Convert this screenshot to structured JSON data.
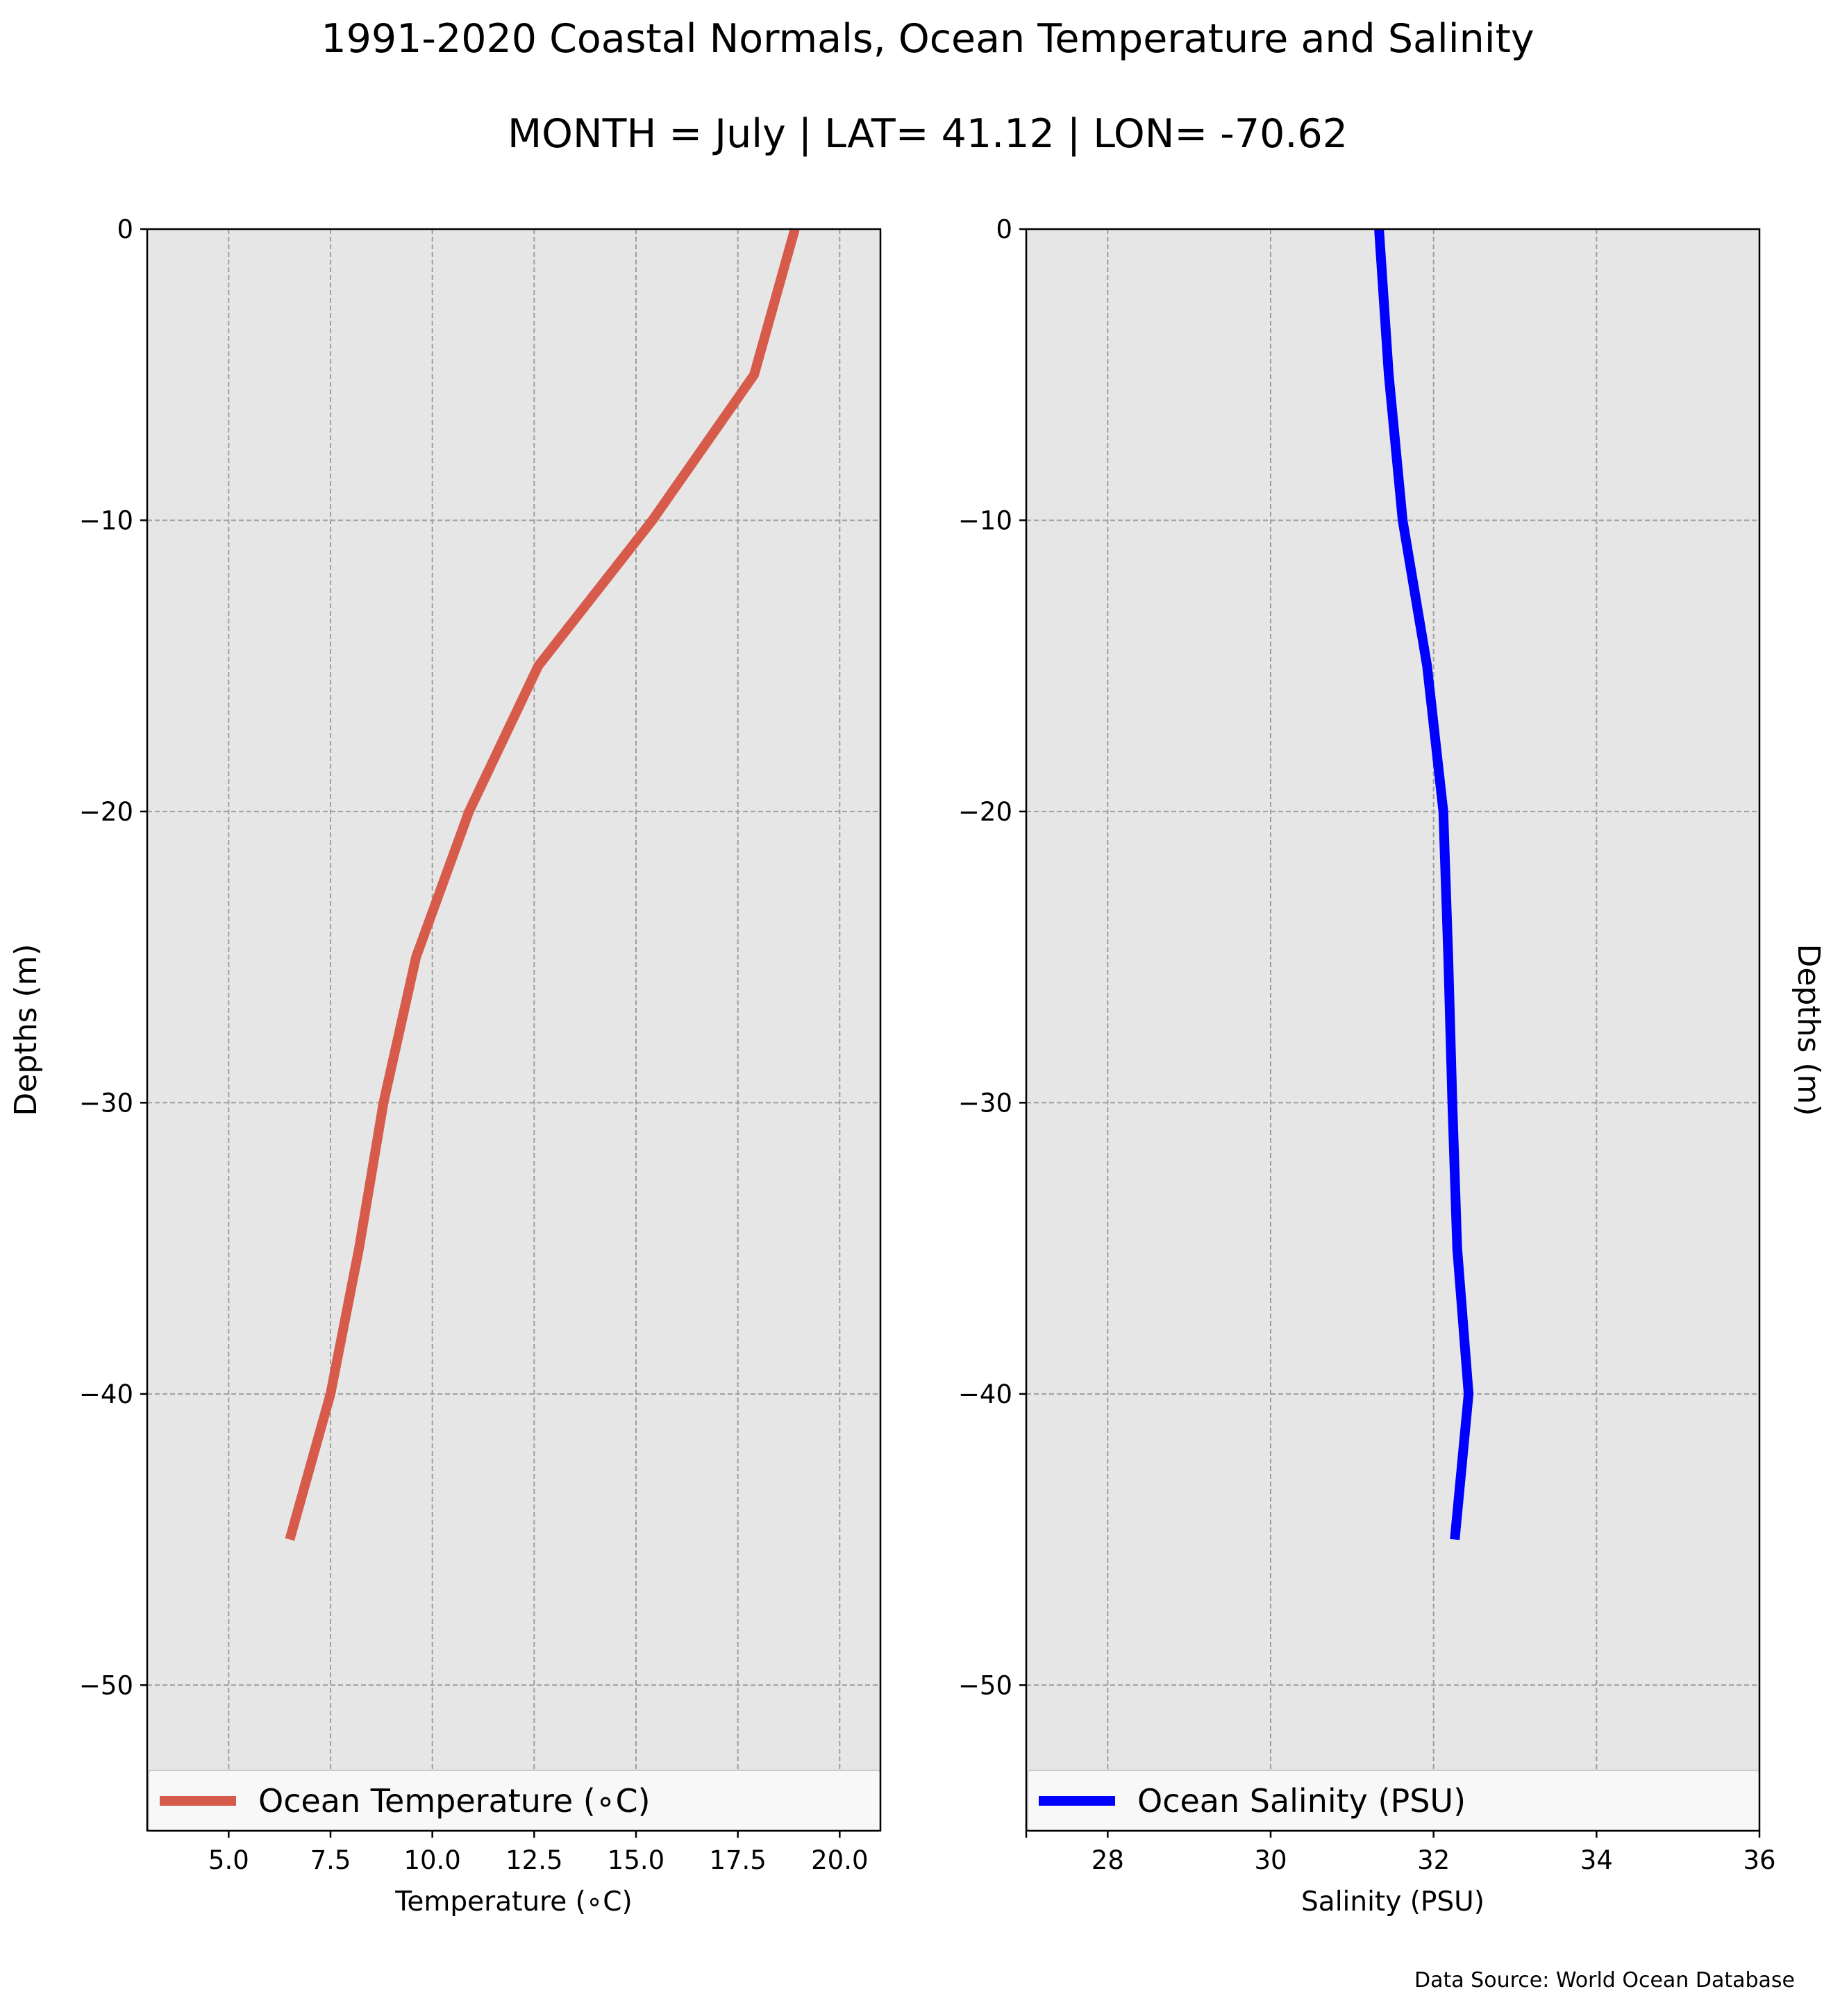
{
  "figure": {
    "title": "1991-2020 Coastal Normals, Ocean Temperature and Salinity",
    "subtitle": "MONTH = July | LAT= 41.12 | LON= -70.62",
    "source_note": "Data Source: World Ocean Database"
  },
  "chart_data": [
    {
      "type": "line",
      "orientation": "profile",
      "xlabel": "Temperature (∘C)",
      "ylabel": "Depths (m)",
      "xlim": [
        3.0,
        21.0
      ],
      "ylim": [
        -55,
        0
      ],
      "xticks": [
        2.5,
        5.0,
        7.5,
        10.0,
        12.5,
        15.0,
        17.5,
        20.0
      ],
      "xtick_labels": [
        "",
        "5.0",
        "7.5",
        "10.0",
        "12.5",
        "15.0",
        "17.5",
        "20.0"
      ],
      "yticks": [
        0,
        -10,
        -20,
        -30,
        -40,
        -50
      ],
      "ytick_labels": [
        "0",
        "−10",
        "−20",
        "−30",
        "−40",
        "−50"
      ],
      "grid": true,
      "legend_position": "bottom",
      "series": [
        {
          "name": "Ocean Temperature (∘C)",
          "color": "#d75b4b",
          "x": [
            18.9,
            17.9,
            15.4,
            12.6,
            10.9,
            9.6,
            8.8,
            8.2,
            7.5,
            6.5
          ],
          "y": [
            0,
            -5,
            -10,
            -15,
            -20,
            -25,
            -30,
            -35,
            -40,
            -45
          ]
        }
      ]
    },
    {
      "type": "line",
      "orientation": "profile",
      "xlabel": "Salinity (PSU)",
      "ylabel": "Depths (m)",
      "xlim": [
        27,
        36
      ],
      "ylim": [
        -55,
        0
      ],
      "xticks": [
        27,
        28,
        30,
        32,
        34,
        36
      ],
      "xtick_labels": [
        "",
        "28",
        "30",
        "32",
        "34",
        "36"
      ],
      "yticks": [
        0,
        -10,
        -20,
        -30,
        -40,
        -50
      ],
      "ytick_labels": [
        "0",
        "−10",
        "−20",
        "−30",
        "−40",
        "−50"
      ],
      "grid": true,
      "legend_position": "bottom",
      "series": [
        {
          "name": "Ocean Salinity (PSU)",
          "color": "#0000ff",
          "x": [
            31.33,
            31.45,
            31.62,
            31.92,
            32.12,
            32.18,
            32.23,
            32.29,
            32.43,
            32.26
          ],
          "y": [
            0,
            -5,
            -10,
            -15,
            -20,
            -25,
            -30,
            -35,
            -40,
            -45
          ]
        }
      ]
    }
  ],
  "colors": {
    "axes_background": "#e6e6e6",
    "grid": "#9e9e9e",
    "legend_background": "#f8f8f8"
  }
}
